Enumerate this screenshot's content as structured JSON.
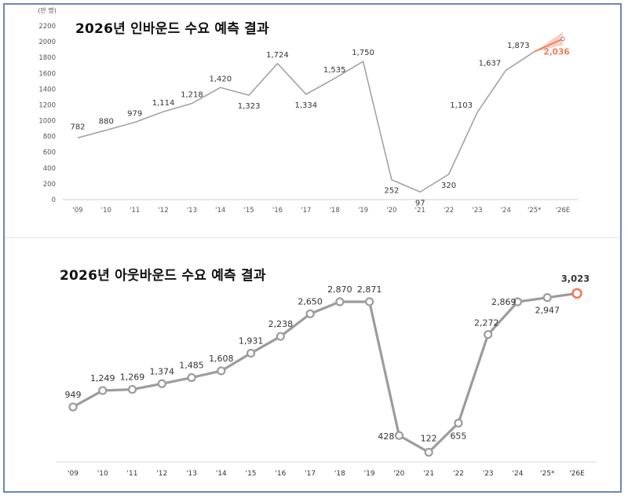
{
  "chart_data": [
    {
      "type": "line",
      "title": "2026년 인바운드 수요 예측 결과",
      "ylabel": "(만 명)",
      "ylim": [
        0,
        2200
      ],
      "yticks": [
        0,
        200,
        400,
        600,
        800,
        1000,
        1200,
        1400,
        1600,
        1800,
        2000,
        2200
      ],
      "categories": [
        "'09",
        "'10",
        "'11",
        "'12",
        "'13",
        "'14",
        "'15",
        "'16",
        "'17",
        "'18",
        "'19",
        "'20",
        "'21",
        "'22",
        "'23",
        "'24",
        "'25*",
        "'26E"
      ],
      "values": [
        782,
        880,
        979,
        1114,
        1218,
        1420,
        1323,
        1724,
        1334,
        1535,
        1750,
        252,
        97,
        320,
        1103,
        1637,
        1873,
        2036
      ],
      "value_labels": [
        "782",
        "880",
        "979",
        "1,114",
        "1,218",
        "1,420",
        "1,323",
        "1,724",
        "1,334",
        "1,535",
        "1,750",
        "252",
        "97",
        "320",
        "1,103",
        "1,637",
        "1,873",
        "2,036"
      ],
      "forecast_index": 17,
      "colors": {
        "line": "#a3a3a3",
        "forecast": "#ee7b55",
        "label": "#333333",
        "axis": "#555555"
      }
    },
    {
      "type": "line",
      "title": "2026년 아웃바운드 수요 예측 결과",
      "ylim": [
        0,
        3100
      ],
      "categories": [
        "'09",
        "'10",
        "'11",
        "'12",
        "'13",
        "'14",
        "'15",
        "'16",
        "'17",
        "'18",
        "'19",
        "'20",
        "'21",
        "'22",
        "'23",
        "'24",
        "'25*",
        "'26E"
      ],
      "values": [
        949,
        1249,
        1269,
        1374,
        1485,
        1608,
        1931,
        2238,
        2650,
        2870,
        2871,
        428,
        122,
        655,
        2272,
        2869,
        2947,
        3023
      ],
      "value_labels": [
        "949",
        "1,249",
        "1,269",
        "1,374",
        "1,485",
        "1,608",
        "1,931",
        "2,238",
        "2,650",
        "2,870",
        "2,871",
        "428",
        "122",
        "655",
        "2,272",
        "2,869",
        "2,947",
        "3,023"
      ],
      "forecast_index": 17,
      "colors": {
        "line": "#9c9c9c",
        "marker": "#9c9c9c",
        "forecast": "#ee7b55",
        "label": "#333333",
        "axis": "#333333"
      }
    }
  ]
}
